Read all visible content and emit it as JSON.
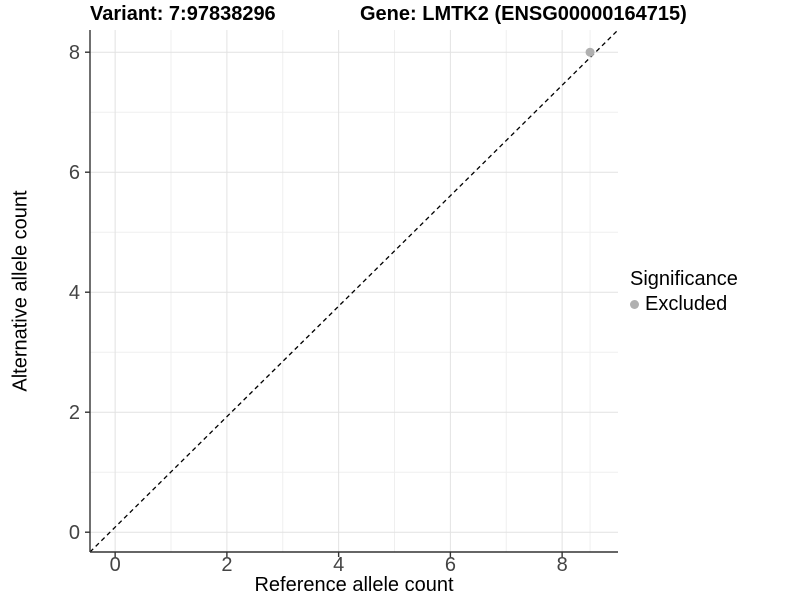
{
  "titles": {
    "left": "Variant: 7:97838296",
    "right": "Gene: LMTK2 (ENSG00000164715)"
  },
  "axes": {
    "x_label": "Reference allele count",
    "y_label": "Alternative allele count"
  },
  "legend": {
    "title": "Significance",
    "position": "right",
    "items": [
      {
        "label": "Excluded",
        "color": "#b0b0b0"
      }
    ]
  },
  "colors": {
    "background": "#ffffff",
    "axis_line": "#333333",
    "tick_label": "#444444",
    "grid_major": "#e2e2e2",
    "grid_minor": "#efefef",
    "identity_line": "#000000",
    "point": "#b0b0b0"
  },
  "chart_data": {
    "type": "scatter",
    "title": "Variant: 7:97838296   Gene: LMTK2 (ENSG00000164715)",
    "xlabel": "Reference allele count",
    "ylabel": "Alternative allele count",
    "xlim": [
      -0.45,
      9.0
    ],
    "ylim": [
      -0.33,
      8.37
    ],
    "x_ticks": [
      0,
      2,
      4,
      6,
      8
    ],
    "y_ticks": [
      0,
      2,
      4,
      6,
      8
    ],
    "x_minor_gridlines": [
      1,
      3,
      5,
      7,
      8.5
    ],
    "y_minor_gridlines": [
      1,
      3,
      5,
      7
    ],
    "grid": true,
    "identity_line": {
      "style": "dashed",
      "color": "#000000"
    },
    "series": [
      {
        "name": "Excluded",
        "color": "#b0b0b0",
        "points": [
          {
            "x": 8.5,
            "y": 8.0
          }
        ]
      }
    ],
    "legend_title": "Significance",
    "legend_entries": [
      "Excluded"
    ],
    "legend_position": "right"
  }
}
